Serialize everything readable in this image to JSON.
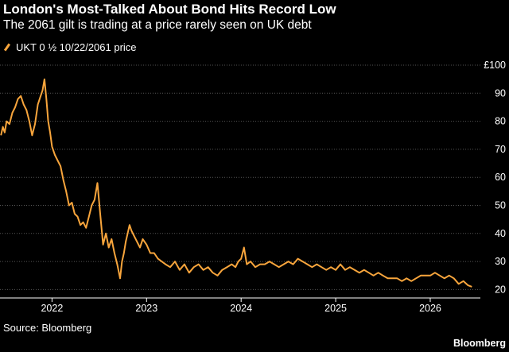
{
  "title": "London's Most-Talked About Bond Hits Record Low",
  "subtitle": "The 2061 gilt is trading at a price rarely seen on UK debt",
  "source": "Source: Bloomberg",
  "brand": "Bloomberg",
  "colors": {
    "background": "#000000",
    "series": "#f8a53c",
    "grid": "#555555",
    "axis": "#ffffff"
  },
  "chart_data": {
    "type": "line",
    "title": "London's Most-Talked About Bond Hits Record Low",
    "subtitle": "The 2061 gilt is trading at a price rarely seen on UK debt",
    "ylabel": "£100",
    "ylim": [
      17,
      100
    ],
    "yticks": [
      20,
      30,
      40,
      50,
      60,
      70,
      80,
      90
    ],
    "y_top_label": "£100",
    "xlim": [
      2021.45,
      2026.53
    ],
    "xticks": [
      2022,
      2023,
      2024,
      2025,
      2026
    ],
    "xtick_labels": [
      "2022",
      "2023",
      "2024",
      "2025",
      "2026"
    ],
    "grid": true,
    "legend_position": "top-left",
    "series": [
      {
        "name": "UKT 0 ½ 10/22/2061 price",
        "color": "#f8a53c",
        "x": [
          2021.46,
          2021.48,
          2021.5,
          2021.52,
          2021.55,
          2021.58,
          2021.61,
          2021.64,
          2021.67,
          2021.7,
          2021.73,
          2021.76,
          2021.79,
          2021.82,
          2021.85,
          2021.88,
          2021.9,
          2021.92,
          2021.94,
          2021.96,
          2021.98,
          2022.0,
          2022.03,
          2022.06,
          2022.09,
          2022.12,
          2022.15,
          2022.18,
          2022.21,
          2022.24,
          2022.27,
          2022.3,
          2022.33,
          2022.36,
          2022.39,
          2022.42,
          2022.45,
          2022.48,
          2022.51,
          2022.54,
          2022.57,
          2022.6,
          2022.63,
          2022.66,
          2022.69,
          2022.72,
          2022.74,
          2022.76,
          2022.78,
          2022.8,
          2022.82,
          2022.84,
          2022.87,
          2022.9,
          2022.93,
          2022.96,
          2023.0,
          2023.04,
          2023.08,
          2023.12,
          2023.16,
          2023.2,
          2023.25,
          2023.3,
          2023.35,
          2023.4,
          2023.45,
          2023.5,
          2023.55,
          2023.6,
          2023.65,
          2023.7,
          2023.75,
          2023.8,
          2023.85,
          2023.9,
          2023.94,
          2023.97,
          2024.0,
          2024.03,
          2024.06,
          2024.1,
          2024.15,
          2024.2,
          2024.25,
          2024.3,
          2024.35,
          2024.4,
          2024.45,
          2024.5,
          2024.55,
          2024.6,
          2024.65,
          2024.7,
          2024.75,
          2024.8,
          2024.85,
          2024.9,
          2024.95,
          2025.0,
          2025.05,
          2025.1,
          2025.15,
          2025.2,
          2025.25,
          2025.3,
          2025.35,
          2025.4,
          2025.45,
          2025.5,
          2025.55,
          2025.6,
          2025.65,
          2025.7,
          2025.75,
          2025.8,
          2025.85,
          2025.9,
          2025.95,
          2026.0,
          2026.05,
          2026.1,
          2026.15,
          2026.2,
          2026.25,
          2026.3,
          2026.35,
          2026.4,
          2026.44
        ],
        "values": [
          75,
          78,
          76,
          80,
          79,
          83,
          85,
          88,
          89,
          86,
          84,
          80,
          75,
          79,
          86,
          89,
          91,
          95,
          88,
          80,
          76,
          71,
          68,
          66,
          64,
          59,
          55,
          50,
          51,
          47,
          46,
          43,
          44,
          42,
          46,
          50,
          52,
          58,
          47,
          36,
          40,
          35,
          38,
          33,
          29,
          24,
          30,
          33,
          37,
          40,
          43,
          41,
          39,
          37,
          35,
          38,
          36,
          33,
          33,
          31,
          30,
          29,
          28,
          30,
          27,
          29,
          26,
          28,
          29,
          27,
          28,
          26,
          25,
          27,
          28,
          29,
          28,
          30,
          31,
          35,
          29,
          30,
          28,
          29,
          29,
          30,
          29,
          28,
          29,
          30,
          29,
          31,
          30,
          29,
          28,
          29,
          28,
          27,
          28,
          27,
          29,
          27,
          28,
          27,
          26,
          27,
          26,
          25,
          26,
          25,
          24,
          24,
          24,
          23,
          24,
          23,
          24,
          25,
          25,
          25,
          26,
          25,
          24,
          25,
          24,
          22,
          23,
          21.5,
          21
        ]
      }
    ]
  }
}
